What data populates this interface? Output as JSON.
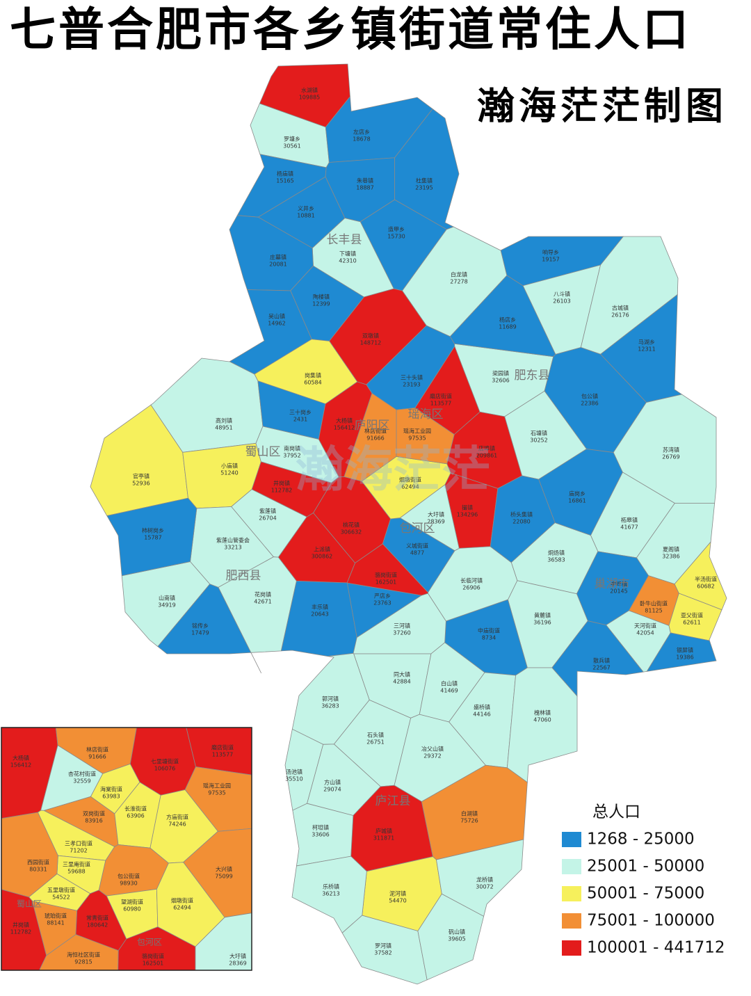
{
  "title": "七普合肥市各乡镇街道常住人口",
  "author": "瀚海茫茫制图",
  "watermark": "瀚海茫茫",
  "legend": {
    "title": "总人口",
    "items": [
      {
        "label": "1268 - 25000",
        "min": 1268,
        "max": 25000,
        "color": "#1f8ad2"
      },
      {
        "label": "25001 - 50000",
        "min": 25001,
        "max": 50000,
        "color": "#c4f4e7"
      },
      {
        "label": "50001 - 75000",
        "min": 50001,
        "max": 75000,
        "color": "#f6f05c"
      },
      {
        "label": "75001 - 100000",
        "min": 75001,
        "max": 100000,
        "color": "#f28f35"
      },
      {
        "label": "100001 - 441712",
        "min": 100001,
        "max": 441712,
        "color": "#e31c1c"
      }
    ]
  },
  "districts": [
    "长丰县",
    "肥东县",
    "庐阳区",
    "瑶海区",
    "蜀山区",
    "包河区",
    "肥西县",
    "巢湖市",
    "庐江县"
  ],
  "regions": [
    {
      "name": "水湖镇",
      "population": 109885
    },
    {
      "name": "罗塘乡",
      "population": 30561
    },
    {
      "name": "左店乡",
      "population": 18678
    },
    {
      "name": "杨庙镇",
      "population": 15165
    },
    {
      "name": "朱巷镇",
      "population": 18887
    },
    {
      "name": "杜集镇",
      "population": 23195
    },
    {
      "name": "义井乡",
      "population": 10881
    },
    {
      "name": "造甲乡",
      "population": 15730
    },
    {
      "name": "下塘镇",
      "population": 42310
    },
    {
      "name": "庄墓镇",
      "population": 20081
    },
    {
      "name": "陶楼镇",
      "population": 12399
    },
    {
      "name": "吴山镇",
      "population": 14962
    },
    {
      "name": "白龙镇",
      "population": 27278
    },
    {
      "name": "双墩镇",
      "population": 148712
    },
    {
      "name": "三十头镇",
      "population": 23193
    },
    {
      "name": "梁园镇",
      "population": 32606
    },
    {
      "name": "响导乡",
      "population": 19157
    },
    {
      "name": "八斗镇",
      "population": 26103
    },
    {
      "name": "古城镇",
      "population": 26176
    },
    {
      "name": "马湖乡",
      "population": 12311
    },
    {
      "name": "包公镇",
      "population": 22386
    },
    {
      "name": "店埠镇",
      "population": 209861
    },
    {
      "name": "撮镇",
      "population": 134296
    },
    {
      "name": "石塘镇",
      "population": 30252
    },
    {
      "name": "苏湾镇",
      "population": 26769
    },
    {
      "name": "柘皋镇",
      "population": 41677
    },
    {
      "name": "夏阁镇",
      "population": 32386
    },
    {
      "name": "烔炀镇",
      "population": 36583
    },
    {
      "name": "中垾镇",
      "population": 20145
    },
    {
      "name": "黄麓镇",
      "population": 36196
    },
    {
      "name": "卧牛山街道",
      "population": 81125
    },
    {
      "name": "半汤街道",
      "population": 60682
    },
    {
      "name": "亚父街道",
      "population": 62611
    },
    {
      "name": "天河街道",
      "population": 42054
    },
    {
      "name": "银屏镇",
      "population": 19386
    },
    {
      "name": "散兵镇",
      "population": 22567
    },
    {
      "name": "长临河镇",
      "population": 26906
    },
    {
      "name": "中庙街道",
      "population": 8734
    },
    {
      "name": "岗集镇",
      "population": 60584
    },
    {
      "name": "高刘镇",
      "population": 48951
    },
    {
      "name": "官亭镇",
      "population": 52936
    },
    {
      "name": "小庙镇",
      "population": 51240
    },
    {
      "name": "南岗镇",
      "population": 37952
    },
    {
      "name": "紫蓬镇",
      "population": 26704
    },
    {
      "name": "紫蓬山管委会",
      "population": 33213
    },
    {
      "name": "山南镇",
      "population": 34919
    },
    {
      "name": "花岗镇",
      "population": 42671
    },
    {
      "name": "铭传乡",
      "population": 17479
    },
    {
      "name": "丰乐镇",
      "population": 20643
    },
    {
      "name": "上派镇",
      "population": 300862
    },
    {
      "name": "桃花镇",
      "population": 306632
    },
    {
      "name": "严店乡",
      "population": 23763
    },
    {
      "name": "三河镇",
      "population": 37260
    },
    {
      "name": "同大镇",
      "population": 42884
    },
    {
      "name": "白山镇",
      "population": 41469
    },
    {
      "name": "郭河镇",
      "population": 36283
    },
    {
      "name": "石头镇",
      "population": 26751
    },
    {
      "name": "盛桥镇",
      "population": 44146
    },
    {
      "name": "槐林镇",
      "population": 47060
    },
    {
      "name": "冶父山镇",
      "population": 29372
    },
    {
      "name": "汤池镇",
      "population": 35510
    },
    {
      "name": "方山镇",
      "population": 29074
    },
    {
      "name": "庐城镇",
      "population": 311871
    },
    {
      "name": "白湖镇",
      "population": 75726
    },
    {
      "name": "柯坦镇",
      "population": 33606
    },
    {
      "name": "泥河镇",
      "population": 54470
    },
    {
      "name": "乐桥镇",
      "population": 36213
    },
    {
      "name": "龙桥镇",
      "population": 30072
    },
    {
      "name": "罗河镇",
      "population": 37582
    },
    {
      "name": "矾山镇",
      "population": 39605
    },
    {
      "name": "大圩镇",
      "population": 28369
    },
    {
      "name": "三十岗乡",
      "population": 2431
    },
    {
      "name": "骆岗街道",
      "population": 162501
    },
    {
      "name": "义城街道",
      "population": 4877
    },
    {
      "name": "烟墩街道",
      "population": 62494
    },
    {
      "name": "磨店街道",
      "population": 113577
    },
    {
      "name": "瑶海工业园",
      "population": 97535
    },
    {
      "name": "林店街道",
      "population": 91666
    },
    {
      "name": "大杨镇",
      "population": 156412
    },
    {
      "name": "井岗镇",
      "population": 112782
    },
    {
      "name": "庙岗乡",
      "population": 16861
    },
    {
      "name": "桥头集镇",
      "population": 22080
    },
    {
      "name": "杨店乡",
      "population": 11689
    },
    {
      "name": "柿树岗乡",
      "population": 15787
    }
  ],
  "inset": {
    "districts": [
      "蜀山区",
      "包河区"
    ],
    "regions": [
      {
        "name": "大杨镇",
        "population": 156412
      },
      {
        "name": "林店街道",
        "population": 91666
      },
      {
        "name": "七里塘街道",
        "population": 106076
      },
      {
        "name": "磨店街道",
        "population": 113577
      },
      {
        "name": "杏花村街道",
        "population": 32559
      },
      {
        "name": "瑶海工业园",
        "population": 97535
      },
      {
        "name": "海棠街道",
        "population": 63983
      },
      {
        "name": "双岗街道",
        "population": 83916
      },
      {
        "name": "长淮街道",
        "population": 63906
      },
      {
        "name": "方庙街道",
        "population": 74246
      },
      {
        "name": "三孝口街道",
        "population": 71202
      },
      {
        "name": "三里庵街道",
        "population": 59688
      },
      {
        "name": "五里墩街道",
        "population": 54522
      },
      {
        "name": "西园街道",
        "population": 80331
      },
      {
        "name": "包公街道",
        "population": 98930
      },
      {
        "name": "望湖街道",
        "population": 60980
      },
      {
        "name": "大兴镇",
        "population": 75099
      },
      {
        "name": "烟墩街道",
        "population": 62494
      },
      {
        "name": "井岗镇",
        "population": 112782
      },
      {
        "name": "琥珀街道",
        "population": 88141
      },
      {
        "name": "常青街道",
        "population": 180642
      },
      {
        "name": "海恒社区街道",
        "population": 92815
      },
      {
        "name": "骆岗街道",
        "population": 162501
      },
      {
        "name": "大圩镇",
        "population": 28369
      }
    ]
  }
}
